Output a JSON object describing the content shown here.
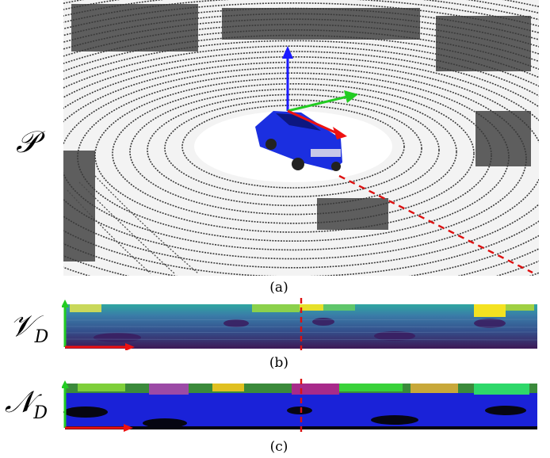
{
  "figure": {
    "panel_a": {
      "symbol": "𝒫",
      "caption": "(a)"
    },
    "panel_b": {
      "symbol_base": "𝒱",
      "symbol_sub": "D",
      "caption": "(b)"
    },
    "panel_c": {
      "symbol_base": "𝒩",
      "symbol_sub": "D",
      "caption": "(c)"
    }
  },
  "colors": {
    "axis_z": "#1a1aff",
    "axis_y": "#22cc22",
    "axis_x": "#ee1111",
    "dash_line": "#dd1111",
    "car": "#1b2fe0",
    "points": "#3a3a3a"
  }
}
